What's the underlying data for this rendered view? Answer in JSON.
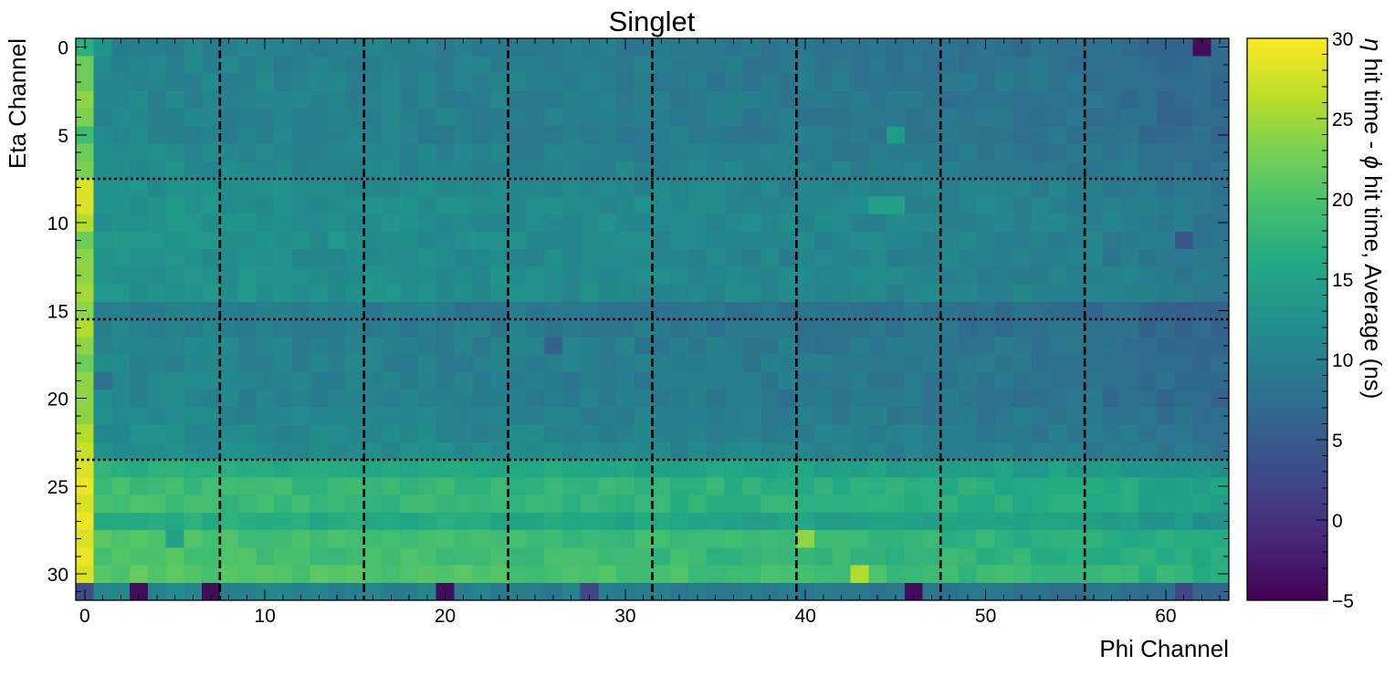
{
  "chart_data": {
    "type": "heatmap",
    "title": "Singlet",
    "xlabel": "Phi Channel",
    "ylabel": "Eta Channel",
    "colorbar_label_parts": [
      "η",
      " hit time - ",
      "ϕ",
      " hit time, Average (ns)"
    ],
    "colormap": "viridis",
    "xlim": [
      -0.5,
      63.5
    ],
    "ylim": [
      -0.5,
      31.5
    ],
    "y_inverted": true,
    "x_ticks": [
      "0",
      "10",
      "20",
      "30",
      "40",
      "50",
      "60"
    ],
    "y_ticks": [
      "0",
      "5",
      "10",
      "15",
      "20",
      "25",
      "30"
    ],
    "colorbar_ticks": [
      "−5",
      "0",
      "5",
      "10",
      "15",
      "20",
      "25",
      "30"
    ],
    "vmin": -5,
    "vmax": 30,
    "vertical_dashed_lines_x": [
      7.5,
      15.5,
      23.5,
      31.5,
      39.5,
      47.5,
      55.5
    ],
    "horizontal_dotted_lines_y": [
      7.5,
      15.5,
      23.5
    ],
    "n_phi": 64,
    "n_eta": 32,
    "column0_values": [
      17,
      22,
      22,
      24,
      23,
      19,
      22,
      23,
      28,
      28,
      26,
      22,
      24,
      24,
      25,
      24,
      26,
      24,
      22,
      24,
      24,
      24,
      26,
      27,
      28,
      29,
      28,
      29,
      28,
      29,
      28,
      3
    ],
    "row_base_values": [
      9.5,
      10,
      10,
      10,
      10,
      10,
      10.5,
      11,
      11.5,
      12,
      12,
      12,
      11.5,
      12,
      12,
      9,
      9.5,
      10,
      10,
      10,
      10,
      10.5,
      11,
      11.5,
      16,
      18,
      18,
      16,
      19,
      19,
      20,
      10
    ],
    "phi_trend_ns": [
      1,
      1,
      1,
      1,
      0.8,
      0.8,
      0.7,
      0.7,
      0.5,
      0.5,
      0.4,
      0.4,
      0.3,
      0.3,
      0.3,
      0.2,
      0.2,
      0.2,
      0.1,
      0.1,
      0,
      0,
      -0.1,
      -0.1,
      -0.1,
      -0.2,
      -0.2,
      -0.3,
      -0.3,
      -0.4,
      -0.4,
      -0.5,
      -0.5,
      -0.6,
      -0.6,
      -0.7,
      -0.7,
      -0.8,
      -0.8,
      -0.9,
      -0.9,
      -1,
      -1,
      -1.1,
      -1.1,
      -1.2,
      -1.2,
      -1.3,
      -1.3,
      -1.4,
      -1.4,
      -1.5,
      -1.5,
      -1.6,
      -1.6,
      -1.7,
      -1.8,
      -2,
      -2.2,
      -2.4,
      -2.6,
      -2.8,
      -3,
      -3
    ],
    "special_cells": [
      {
        "eta": 0,
        "phi": 62,
        "value": -4
      },
      {
        "eta": 31,
        "phi": 3,
        "value": -4
      },
      {
        "eta": 31,
        "phi": 7,
        "value": -4
      },
      {
        "eta": 31,
        "phi": 20,
        "value": -4
      },
      {
        "eta": 31,
        "phi": 28,
        "value": 2
      },
      {
        "eta": 31,
        "phi": 46,
        "value": -4
      },
      {
        "eta": 31,
        "phi": 61,
        "value": 2
      },
      {
        "eta": 30,
        "phi": 43,
        "value": 26
      },
      {
        "eta": 28,
        "phi": 40,
        "value": 24
      },
      {
        "eta": 28,
        "phi": 5,
        "value": 15
      },
      {
        "eta": 9,
        "phi": 44,
        "value": 15
      },
      {
        "eta": 9,
        "phi": 45,
        "value": 15
      },
      {
        "eta": 5,
        "phi": 45,
        "value": 14
      },
      {
        "eta": 17,
        "phi": 26,
        "value": 6
      },
      {
        "eta": 11,
        "phi": 61,
        "value": 4
      },
      {
        "eta": 0,
        "phi": 1,
        "value": 13
      },
      {
        "eta": 19,
        "phi": 1,
        "value": 8
      }
    ]
  }
}
